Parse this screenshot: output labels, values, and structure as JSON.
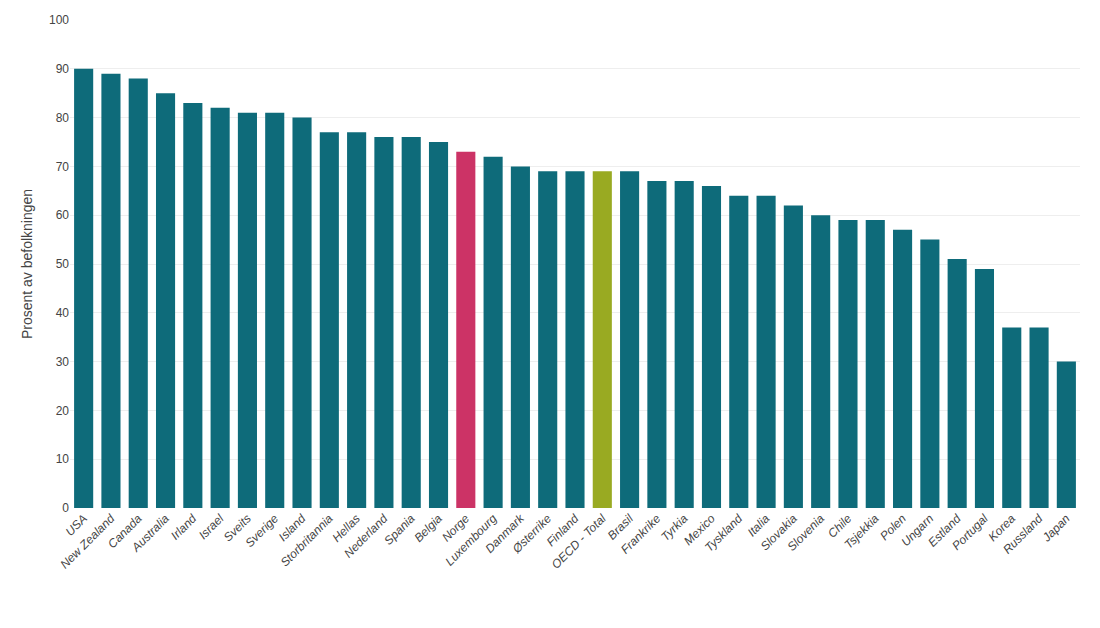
{
  "chart_data": {
    "type": "bar",
    "categories": [
      "USA",
      "New Zealand",
      "Canada",
      "Australia",
      "Irland",
      "Israel",
      "Sveits",
      "Sverige",
      "Island",
      "Storbritannia",
      "Hellas",
      "Nederland",
      "Spania",
      "Belgia",
      "Norge",
      "Luxembourg",
      "Danmark",
      "Østerrike",
      "Finland",
      "OECD - Total",
      "Brasil",
      "Frankrike",
      "Tyrkia",
      "Mexico",
      "Tyskland",
      "Italia",
      "Slovakia",
      "Slovenia",
      "Chile",
      "Tsjekkia",
      "Polen",
      "Ungarn",
      "Estland",
      "Portugal",
      "Korea",
      "Russland",
      "Japan"
    ],
    "values": [
      90,
      89,
      88,
      85,
      83,
      82,
      81,
      81,
      80,
      77,
      77,
      76,
      76,
      75,
      73,
      72,
      70,
      69,
      69,
      69,
      69,
      67,
      67,
      66,
      64,
      64,
      62,
      60,
      59,
      59,
      57,
      55,
      51,
      49,
      37,
      37,
      30
    ],
    "colors": [
      "#0e6b7a",
      "#0e6b7a",
      "#0e6b7a",
      "#0e6b7a",
      "#0e6b7a",
      "#0e6b7a",
      "#0e6b7a",
      "#0e6b7a",
      "#0e6b7a",
      "#0e6b7a",
      "#0e6b7a",
      "#0e6b7a",
      "#0e6b7a",
      "#0e6b7a",
      "#cc3366",
      "#0e6b7a",
      "#0e6b7a",
      "#0e6b7a",
      "#0e6b7a",
      "#99aa22",
      "#0e6b7a",
      "#0e6b7a",
      "#0e6b7a",
      "#0e6b7a",
      "#0e6b7a",
      "#0e6b7a",
      "#0e6b7a",
      "#0e6b7a",
      "#0e6b7a",
      "#0e6b7a",
      "#0e6b7a",
      "#0e6b7a",
      "#0e6b7a",
      "#0e6b7a",
      "#0e6b7a",
      "#0e6b7a",
      "#0e6b7a"
    ],
    "ylabel": "Prosent av befolkningen",
    "ylim": [
      0,
      100
    ],
    "yticks": [
      0,
      10,
      20,
      30,
      40,
      50,
      60,
      70,
      80,
      90,
      100
    ],
    "grid": true
  }
}
